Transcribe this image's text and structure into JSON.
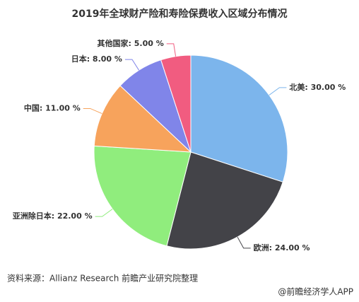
{
  "chart_data": {
    "type": "pie",
    "title": "2019年全球财产险和寿险保费收入区域分布情况",
    "categories": [
      "北美",
      "欧洲",
      "亚洲除日本",
      "中国",
      "日本",
      "其他国家"
    ],
    "values": [
      30,
      24,
      22,
      11,
      8,
      5
    ],
    "value_labels": [
      "北美: 30.00 %",
      "欧洲: 24.00 %",
      "亚洲除日本: 22.00 %",
      "中国: 11.00 %",
      "日本: 8.00 %",
      "其他国家: 5.00 %"
    ],
    "colors": [
      "#7cb5ec",
      "#434348",
      "#90ed7d",
      "#f7a35c",
      "#8085e9",
      "#f15c80"
    ],
    "source": "资料来源：Allianz Research 前瞻产业研究院整理",
    "footer": "@前瞻经济学人APP"
  }
}
